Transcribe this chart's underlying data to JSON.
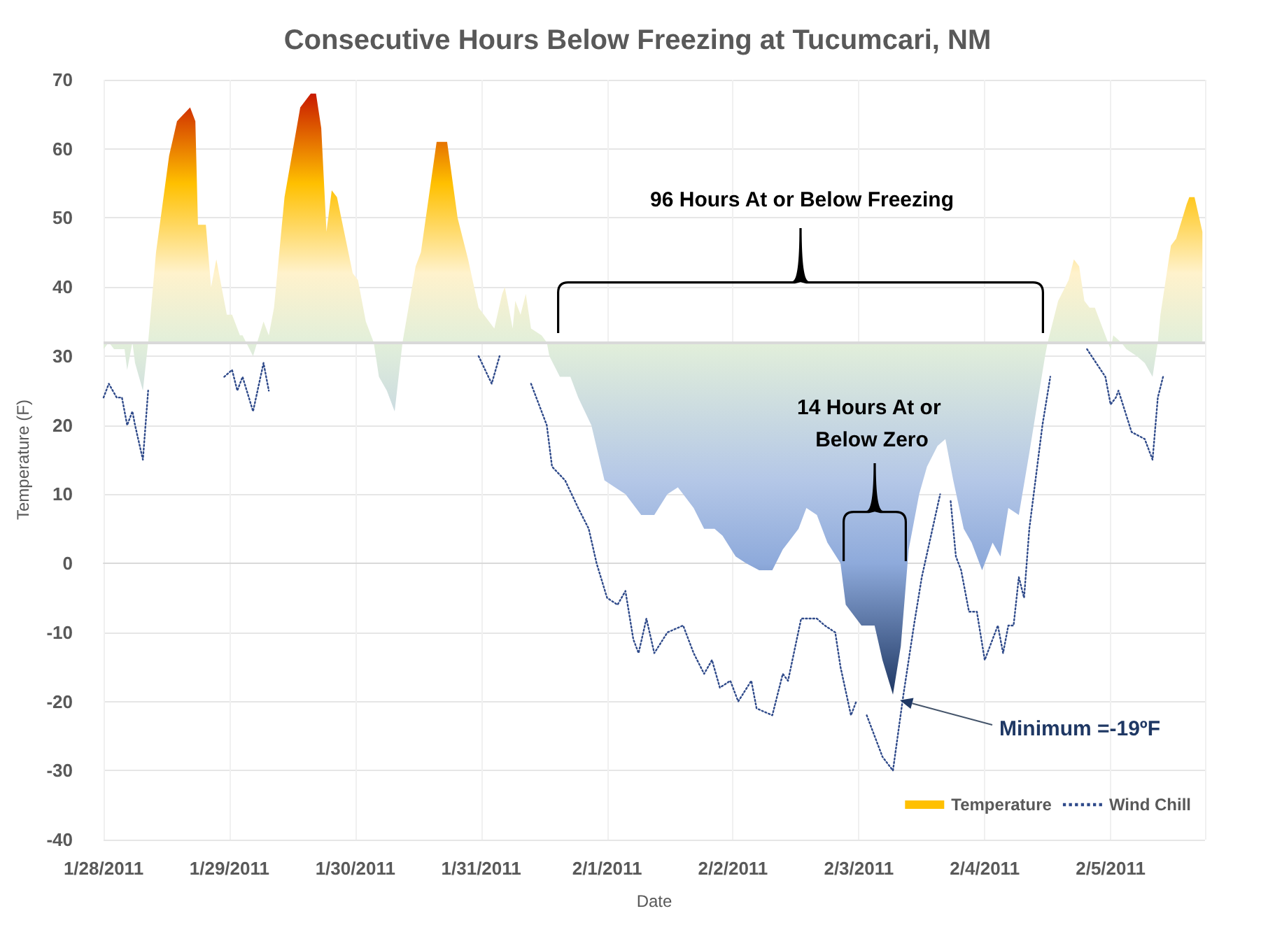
{
  "chart_data": {
    "type": "area",
    "title": "Consecutive Hours Below Freezing at Tucumcari, NM",
    "xlabel": "Date",
    "ylabel": "Temperature (F)",
    "annotations": [
      "96 Hours At or Below Freezing",
      "14 Hours At or Below Zero",
      "Minimum =-19ºF"
    ],
    "xlim": [
      "2011-01-28T00:00",
      "2011-02-05T18:00"
    ],
    "xticks": [
      {
        "value": "2011-01-28",
        "label": "1/28/2011"
      },
      {
        "value": "2011-01-29",
        "label": "1/29/2011"
      },
      {
        "value": "2011-01-30",
        "label": "1/30/2011"
      },
      {
        "value": "2011-01-31",
        "label": "1/31/2011"
      },
      {
        "value": "2011-02-01",
        "label": "2/1/2011"
      },
      {
        "value": "2011-02-02",
        "label": "2/2/2011"
      },
      {
        "value": "2011-02-03",
        "label": "2/3/2011"
      },
      {
        "value": "2011-02-04",
        "label": "2/4/2011"
      },
      {
        "value": "2011-02-05",
        "label": "2/5/2011"
      }
    ],
    "ylim": [
      -40,
      70
    ],
    "yticks": [
      -40,
      -30,
      -20,
      -10,
      0,
      10,
      20,
      30,
      40,
      50,
      60,
      70
    ],
    "grid": true,
    "legend": "bottom right",
    "marker": "none",
    "ref_lines": [
      {
        "axis": "y",
        "value": 32,
        "color": "#d9d9d9"
      }
    ],
    "series": [
      {
        "name": "Temperature",
        "color": "#ffc000",
        "x": [
          "2011-01-28T00:00",
          "2011-01-28T01:00",
          "2011-01-28T02:00",
          "2011-01-28T04:00",
          "2011-01-28T04:30",
          "2011-01-28T05:30",
          "2011-01-28T06:00",
          "2011-01-28T07:30",
          "2011-01-28T08:30",
          "2011-01-28T10:00",
          "2011-01-28T12:30",
          "2011-01-28T14:00",
          "2011-01-28T16:30",
          "2011-01-28T17:30",
          "2011-01-28T18:00",
          "2011-01-28T19:30",
          "2011-01-28T20:30",
          "2011-01-28T21:30",
          "2011-01-28T23:30",
          "2011-01-29T00:30",
          "2011-01-29T02:00",
          "2011-01-29T02:30",
          "2011-01-29T04:30",
          "2011-01-29T06:30",
          "2011-01-29T07:30",
          "2011-01-29T08:30",
          "2011-01-29T10:30",
          "2011-01-29T13:30",
          "2011-01-29T15:30",
          "2011-01-29T16:30",
          "2011-01-29T17:30",
          "2011-01-29T18:30",
          "2011-01-29T19:30",
          "2011-01-29T20:30",
          "2011-01-29T23:30",
          "2011-01-30T00:30",
          "2011-01-30T02:00",
          "2011-01-30T03:30",
          "2011-01-30T04:30",
          "2011-01-30T06:00",
          "2011-01-30T07:30",
          "2011-01-30T09:00",
          "2011-01-30T11:30",
          "2011-01-30T12:30",
          "2011-01-30T15:30",
          "2011-01-30T17:30",
          "2011-01-30T19:30",
          "2011-01-30T21:30",
          "2011-01-30T23:30",
          "2011-01-31T02:30",
          "2011-01-31T04:00",
          "2011-01-31T04:30",
          "2011-01-31T06:00",
          "2011-01-31T06:30",
          "2011-01-31T07:30",
          "2011-01-31T08:30",
          "2011-01-31T09:30",
          "2011-01-31T11:30",
          "2011-01-31T12:30",
          "2011-01-31T13:00",
          "2011-01-31T15:00",
          "2011-01-31T17:00",
          "2011-01-31T18:30",
          "2011-01-31T21:00",
          "2011-01-31T23:30",
          "2011-02-01T01:30",
          "2011-02-01T03:30",
          "2011-02-01T06:30",
          "2011-02-01T09:00",
          "2011-02-01T11:30",
          "2011-02-01T13:30",
          "2011-02-01T14:30",
          "2011-02-01T16:30",
          "2011-02-01T18:30",
          "2011-02-01T20:30",
          "2011-02-01T22:00",
          "2011-02-02T00:30",
          "2011-02-02T02:30",
          "2011-02-02T05:00",
          "2011-02-02T07:30",
          "2011-02-02T09:30",
          "2011-02-02T10:30",
          "2011-02-02T12:30",
          "2011-02-02T14:00",
          "2011-02-02T16:00",
          "2011-02-02T18:00",
          "2011-02-02T20:30",
          "2011-02-02T21:30",
          "2011-02-03T00:30",
          "2011-02-03T03:00",
          "2011-02-03T04:30",
          "2011-02-03T06:30",
          "2011-02-03T08:00",
          "2011-02-03T09:30",
          "2011-02-03T11:30",
          "2011-02-03T13:00",
          "2011-02-03T15:00",
          "2011-02-03T16:30",
          "2011-02-03T18:00",
          "2011-02-03T20:00",
          "2011-02-03T21:30",
          "2011-02-03T23:30",
          "2011-02-04T01:30",
          "2011-02-04T03:00",
          "2011-02-04T04:30",
          "2011-02-04T06:30",
          "2011-02-04T08:30",
          "2011-02-04T10:00",
          "2011-02-04T11:30",
          "2011-02-04T12:00",
          "2011-02-04T14:00",
          "2011-02-04T16:00",
          "2011-02-04T17:00",
          "2011-02-04T18:00",
          "2011-02-04T19:00",
          "2011-02-04T20:00",
          "2011-02-04T21:00",
          "2011-02-04T22:30",
          "2011-02-04T23:30",
          "2011-02-05T00:00",
          "2011-02-05T00:30",
          "2011-02-05T02:00",
          "2011-02-05T03:00",
          "2011-02-05T05:00",
          "2011-02-05T06:30",
          "2011-02-05T08:00",
          "2011-02-05T09:00",
          "2011-02-05T09:30",
          "2011-02-05T11:30",
          "2011-02-05T12:30",
          "2011-02-05T14:30",
          "2011-02-05T15:00",
          "2011-02-05T16:00",
          "2011-02-05T17:30"
        ],
        "values": [
          31,
          32,
          31,
          31,
          28,
          32,
          29,
          25,
          32,
          45,
          59,
          64,
          66,
          64,
          49,
          49,
          40,
          44,
          36,
          36,
          33,
          33,
          30,
          35,
          33,
          37,
          53,
          66,
          68,
          68,
          63,
          48,
          54,
          53,
          42,
          41,
          35,
          32,
          27,
          25,
          22,
          32,
          43,
          45,
          61,
          61,
          50,
          44,
          37,
          34,
          39,
          40,
          34,
          38,
          36,
          39,
          34,
          33,
          32,
          30,
          27,
          27,
          24,
          20,
          12,
          11,
          10,
          7,
          7,
          10,
          11,
          10,
          8,
          5,
          5,
          4,
          1,
          0,
          -1,
          -1,
          2,
          3,
          5,
          8,
          7,
          3,
          0,
          -6,
          -9,
          -9,
          -14,
          -19,
          -12,
          2,
          10,
          14,
          17,
          18,
          12,
          5,
          3,
          -1,
          3,
          1,
          8,
          7,
          16,
          23,
          30,
          32,
          38,
          41,
          44,
          43,
          38,
          37,
          37,
          34,
          32,
          31,
          33,
          32,
          31,
          30,
          29,
          27,
          32,
          36,
          46,
          47,
          52,
          53,
          53,
          48
        ]
      },
      {
        "name": "Wind Chill",
        "type": "line",
        "color": "#2f4a8a",
        "line_style": "dotted",
        "x": [
          "2011-01-28T00:00",
          "2011-01-28T01:00",
          "2011-01-28T02:30",
          "2011-01-28T03:30",
          "2011-01-28T04:30",
          "2011-01-28T05:30",
          "2011-01-28T06:00",
          "2011-01-28T07:30",
          "2011-01-28T08:30",
          "2011-01-28T15:00",
          "2011-01-28T23:00",
          "2011-01-29T00:30",
          "2011-01-29T01:30",
          "2011-01-29T02:30",
          "2011-01-29T04:30",
          "2011-01-29T06:30",
          "2011-01-29T07:30",
          "2011-01-30T02:00",
          "2011-01-30T23:30",
          "2011-01-31T02:00",
          "2011-01-31T03:30",
          "2011-01-31T06:00",
          "2011-01-31T09:30",
          "2011-01-31T12:30",
          "2011-01-31T13:30",
          "2011-01-31T16:00",
          "2011-01-31T18:30",
          "2011-01-31T20:30",
          "2011-01-31T22:00",
          "2011-02-01T00:00",
          "2011-02-01T02:00",
          "2011-02-01T03:30",
          "2011-02-01T05:00",
          "2011-02-01T06:00",
          "2011-02-01T07:30",
          "2011-02-01T09:00",
          "2011-02-01T11:30",
          "2011-02-01T14:30",
          "2011-02-01T16:30",
          "2011-02-01T18:30",
          "2011-02-01T20:00",
          "2011-02-01T21:30",
          "2011-02-01T23:30",
          "2011-02-02T01:00",
          "2011-02-02T03:30",
          "2011-02-02T04:30",
          "2011-02-02T07:30",
          "2011-02-02T09:30",
          "2011-02-02T10:30",
          "2011-02-02T13:00",
          "2011-02-02T16:00",
          "2011-02-02T17:30",
          "2011-02-02T19:30",
          "2011-02-02T20:30",
          "2011-02-02T22:30",
          "2011-02-02T23:30",
          "2011-02-03T00:30",
          "2011-02-03T01:30",
          "2011-02-03T04:30",
          "2011-02-03T06:30",
          "2011-02-03T08:30",
          "2011-02-03T10:30",
          "2011-02-03T12:00",
          "2011-02-03T15:30",
          "2011-02-03T16:30",
          "2011-02-03T17:30",
          "2011-02-03T18:30",
          "2011-02-03T19:30",
          "2011-02-03T21:00",
          "2011-02-03T22:30",
          "2011-02-04T00:00",
          "2011-02-04T02:30",
          "2011-02-04T03:30",
          "2011-02-04T04:30",
          "2011-02-04T05:30",
          "2011-02-04T06:30",
          "2011-02-04T07:30",
          "2011-02-04T08:30",
          "2011-02-04T09:30",
          "2011-02-04T10:30",
          "2011-02-04T11:00",
          "2011-02-04T12:30",
          "2011-02-04T16:00",
          "2011-02-04T19:30",
          "2011-02-04T23:00",
          "2011-02-05T00:00",
          "2011-02-05T01:00",
          "2011-02-05T01:30",
          "2011-02-05T04:00",
          "2011-02-05T06:30",
          "2011-02-05T08:00",
          "2011-02-05T09:00",
          "2011-02-05T10:00"
        ],
        "values": [
          24,
          26,
          24,
          24,
          20,
          22,
          20,
          15,
          25,
          null,
          27,
          28,
          25,
          27,
          22,
          29,
          25,
          null,
          30,
          26,
          30,
          null,
          26,
          20,
          14,
          12,
          8,
          5,
          0,
          -5,
          -6,
          -4,
          -11,
          -13,
          -8,
          -13,
          -10,
          -9,
          -13,
          -16,
          -14,
          -18,
          -17,
          -20,
          -17,
          -21,
          -22,
          -16,
          -17,
          -8,
          -8,
          -9,
          -10,
          -15,
          -22,
          -20,
          null,
          -22,
          -28,
          -30,
          -19,
          -9,
          -2,
          10,
          null,
          9,
          1,
          -1,
          -7,
          -7,
          -14,
          -9,
          -13,
          -9,
          -9,
          -2,
          -5,
          5,
          11,
          17,
          20,
          27,
          null,
          31,
          27,
          23,
          24,
          25,
          19,
          18,
          15,
          24,
          27
        ]
      }
    ]
  }
}
